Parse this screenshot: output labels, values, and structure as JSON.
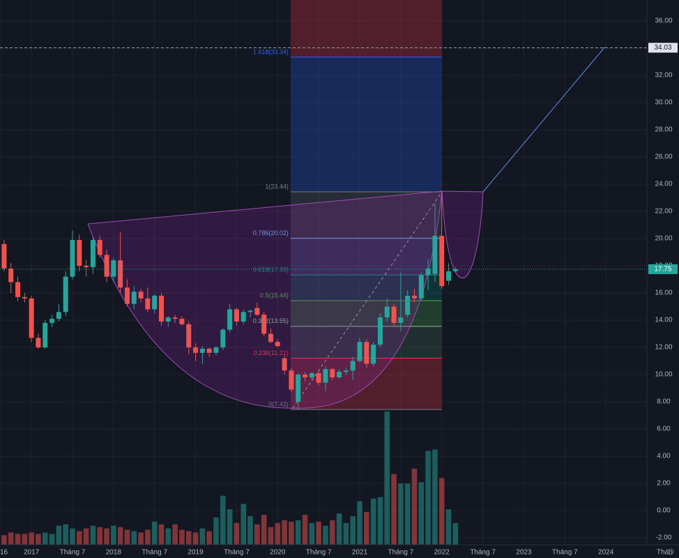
{
  "chart_data": {
    "type": "candlestick",
    "x": [
      -4,
      -3,
      -2,
      -1,
      0,
      1,
      2,
      3,
      4,
      5,
      6,
      7,
      8,
      9,
      10,
      11,
      12,
      13,
      14,
      15,
      16,
      17,
      18,
      19,
      20,
      21,
      22,
      23,
      24,
      25,
      26,
      27,
      28,
      29,
      30,
      31,
      32,
      33,
      34,
      35,
      36,
      37,
      38,
      39,
      40,
      41,
      42,
      43,
      44,
      45,
      46,
      47,
      48,
      49,
      50,
      51,
      52,
      53,
      54,
      55,
      56,
      57,
      58,
      59,
      60,
      61,
      62
    ],
    "open": [
      19.6,
      17.8,
      16.8,
      15.7,
      15.6,
      12.7,
      12.0,
      13.8,
      14.1,
      14.6,
      17.2,
      19.9,
      18.0,
      17.9,
      19.9,
      18.8,
      17.2,
      18.4,
      16.4,
      15.2,
      16.1,
      15.6,
      14.8,
      15.8,
      13.9,
      14.2,
      14.1,
      13.7,
      12.0,
      11.6,
      11.9,
      11.6,
      12.0,
      13.3,
      14.8,
      13.9,
      14.6,
      14.9,
      14.4,
      13.0,
      12.4,
      11.2,
      10.3,
      8.0,
      10.0,
      9.8,
      10.1,
      9.4,
      10.4,
      9.8,
      10.2,
      10.3,
      11.0,
      12.4,
      10.8,
      12.2,
      14.2,
      15.0,
      13.8,
      14.4,
      15.8,
      15.6,
      17.3,
      17.4,
      20.2,
      16.9,
      17.6
    ],
    "high": [
      19.9,
      18.2,
      17.2,
      16.0,
      15.8,
      13.0,
      14.0,
      14.4,
      15.2,
      17.6,
      20.6,
      20.3,
      18.4,
      20.1,
      20.2,
      19.2,
      18.6,
      20.5,
      17.0,
      16.5,
      16.3,
      16.4,
      15.9,
      16.0,
      14.3,
      14.4,
      14.3,
      13.9,
      12.3,
      12.1,
      12.0,
      12.1,
      13.4,
      15.2,
      14.9,
      14.8,
      14.8,
      15.3,
      14.6,
      13.4,
      12.6,
      11.4,
      10.5,
      10.1,
      10.2,
      10.2,
      10.3,
      10.6,
      10.5,
      10.4,
      10.5,
      11.3,
      12.7,
      12.6,
      12.4,
      14.5,
      15.6,
      15.2,
      17.5,
      16.2,
      16.3,
      17.5,
      18.5,
      22.6,
      23.44,
      18.2,
      17.9
    ],
    "low": [
      17.6,
      16.0,
      15.4,
      15.3,
      12.4,
      11.9,
      11.9,
      13.5,
      13.9,
      14.3,
      17.0,
      17.6,
      17.2,
      17.4,
      18.6,
      16.8,
      16.8,
      16.0,
      15.0,
      14.8,
      15.3,
      14.6,
      14.5,
      13.6,
      13.5,
      13.8,
      13.6,
      11.5,
      11.0,
      10.8,
      11.3,
      11.4,
      11.8,
      13.1,
      13.6,
      13.7,
      14.2,
      14.3,
      12.8,
      12.3,
      12.0,
      10.0,
      8.7,
      7.43,
      9.5,
      9.6,
      9.2,
      8.8,
      9.6,
      9.7,
      10.0,
      9.6,
      10.9,
      10.5,
      10.6,
      12.0,
      13.9,
      13.5,
      13.2,
      14.2,
      15.3,
      15.4,
      16.2,
      16.8,
      16.3,
      16.6,
      17.5
    ],
    "close": [
      17.8,
      16.8,
      15.7,
      15.6,
      12.7,
      12.0,
      13.8,
      14.1,
      14.6,
      17.2,
      19.9,
      18.0,
      17.9,
      19.9,
      18.8,
      17.2,
      18.4,
      16.4,
      15.2,
      16.1,
      15.6,
      14.8,
      15.8,
      13.9,
      14.2,
      14.1,
      13.7,
      12.0,
      11.6,
      11.9,
      11.6,
      12.0,
      13.3,
      14.8,
      13.9,
      14.6,
      14.7,
      14.4,
      13.0,
      12.4,
      12.1,
      10.3,
      8.9,
      10.0,
      9.8,
      10.1,
      9.4,
      10.4,
      9.8,
      10.2,
      10.3,
      11.0,
      12.4,
      10.8,
      12.2,
      14.2,
      15.0,
      13.8,
      14.2,
      15.8,
      15.6,
      17.3,
      17.8,
      20.2,
      16.5,
      17.6,
      17.75
    ],
    "up_color": "#26a69a",
    "down_color": "#ef5350",
    "volume": {
      "values": [
        0.7,
        0.9,
        0.8,
        0.8,
        0.9,
        0.8,
        0.9,
        0.8,
        1.4,
        1.5,
        1.2,
        1.0,
        1.2,
        1.4,
        1.3,
        1.2,
        1.4,
        1.3,
        1.1,
        1.0,
        0.9,
        1.1,
        1.7,
        1.5,
        1.2,
        1.5,
        1.1,
        1.0,
        0.9,
        1.2,
        1.0,
        2.0,
        3.6,
        2.6,
        1.6,
        3.0,
        2.1,
        1.5,
        2.2,
        1.3,
        1.6,
        1.8,
        1.7,
        1.8,
        2.2,
        1.6,
        1.7,
        1.4,
        1.8,
        2.3,
        1.6,
        2.1,
        3.2,
        2.4,
        3.4,
        3.5,
        9.8,
        5.2,
        4.5,
        4.5,
        5.6,
        4.6,
        6.9,
        7.0,
        4.9,
        2.6,
        1.6
      ],
      "ylim": [
        0,
        40.05
      ]
    },
    "xlim": [
      -4.6,
      90
    ],
    "ylim": [
      -2.51,
      37.54
    ],
    "yticks": [
      {
        "value": -2,
        "label": "-2.00"
      },
      {
        "value": 0,
        "label": "0.00"
      },
      {
        "value": 2,
        "label": "2.00"
      },
      {
        "value": 4,
        "label": "4.00"
      },
      {
        "value": 6,
        "label": "6.00"
      },
      {
        "value": 8,
        "label": "8.00"
      },
      {
        "value": 10,
        "label": "10.00"
      },
      {
        "value": 12,
        "label": "12.00"
      },
      {
        "value": 14,
        "label": "14.00"
      },
      {
        "value": 16,
        "label": "16.00"
      },
      {
        "value": 18,
        "label": "18.00"
      },
      {
        "value": 20,
        "label": "20.00"
      },
      {
        "value": 22,
        "label": "22.00"
      },
      {
        "value": 24,
        "label": "24.00"
      },
      {
        "value": 26,
        "label": "26.00"
      },
      {
        "value": 28,
        "label": "28.00"
      },
      {
        "value": 30,
        "label": "30.00"
      },
      {
        "value": 32,
        "label": "32.00"
      },
      {
        "value": 34,
        "label": "34.00"
      },
      {
        "value": 36,
        "label": "36.00"
      }
    ],
    "xticks": [
      {
        "value": -4.6,
        "label": "16"
      },
      {
        "value": 0,
        "label": "2017"
      },
      {
        "value": 6,
        "label": "Tháng 7"
      },
      {
        "value": 12,
        "label": "2018"
      },
      {
        "value": 18,
        "label": "Tháng 7"
      },
      {
        "value": 24,
        "label": "2019"
      },
      {
        "value": 30,
        "label": "Tháng 7"
      },
      {
        "value": 36,
        "label": "2020"
      },
      {
        "value": 42,
        "label": "Tháng 7"
      },
      {
        "value": 48,
        "label": "2021"
      },
      {
        "value": 54,
        "label": "Tháng 7"
      },
      {
        "value": 60,
        "label": "2022"
      },
      {
        "value": 66,
        "label": "Tháng 7"
      },
      {
        "value": 72,
        "label": "2023"
      },
      {
        "value": 78,
        "label": "Tháng 7"
      },
      {
        "value": 84,
        "label": "2024"
      },
      {
        "value": 90,
        "label": "Thán"
      }
    ],
    "grid": true,
    "fib": {
      "x": [
        38,
        60
      ],
      "levels": [
        {
          "label": "0(7.43)",
          "value": 7.43,
          "color": "#787b86"
        },
        {
          "label": "0.236(11.21)",
          "value": 11.21,
          "color": "#f23645"
        },
        {
          "label": "0.382(13.55)",
          "value": 13.55,
          "color": "#81c784"
        },
        {
          "label": "0.5(15.44)",
          "value": 15.44,
          "color": "#4caf50"
        },
        {
          "label": "0.618(17.33)",
          "value": 17.33,
          "color": "#089981"
        },
        {
          "label": "0.786(20.02)",
          "value": 20.02,
          "color": "#64b5f6"
        },
        {
          "label": "1(23.44)",
          "value": 23.44,
          "color": "#787b86"
        },
        {
          "label": "1.618(33.34)",
          "value": 33.34,
          "color": "#2962ff"
        }
      ]
    },
    "target": 34.03
  }
}
